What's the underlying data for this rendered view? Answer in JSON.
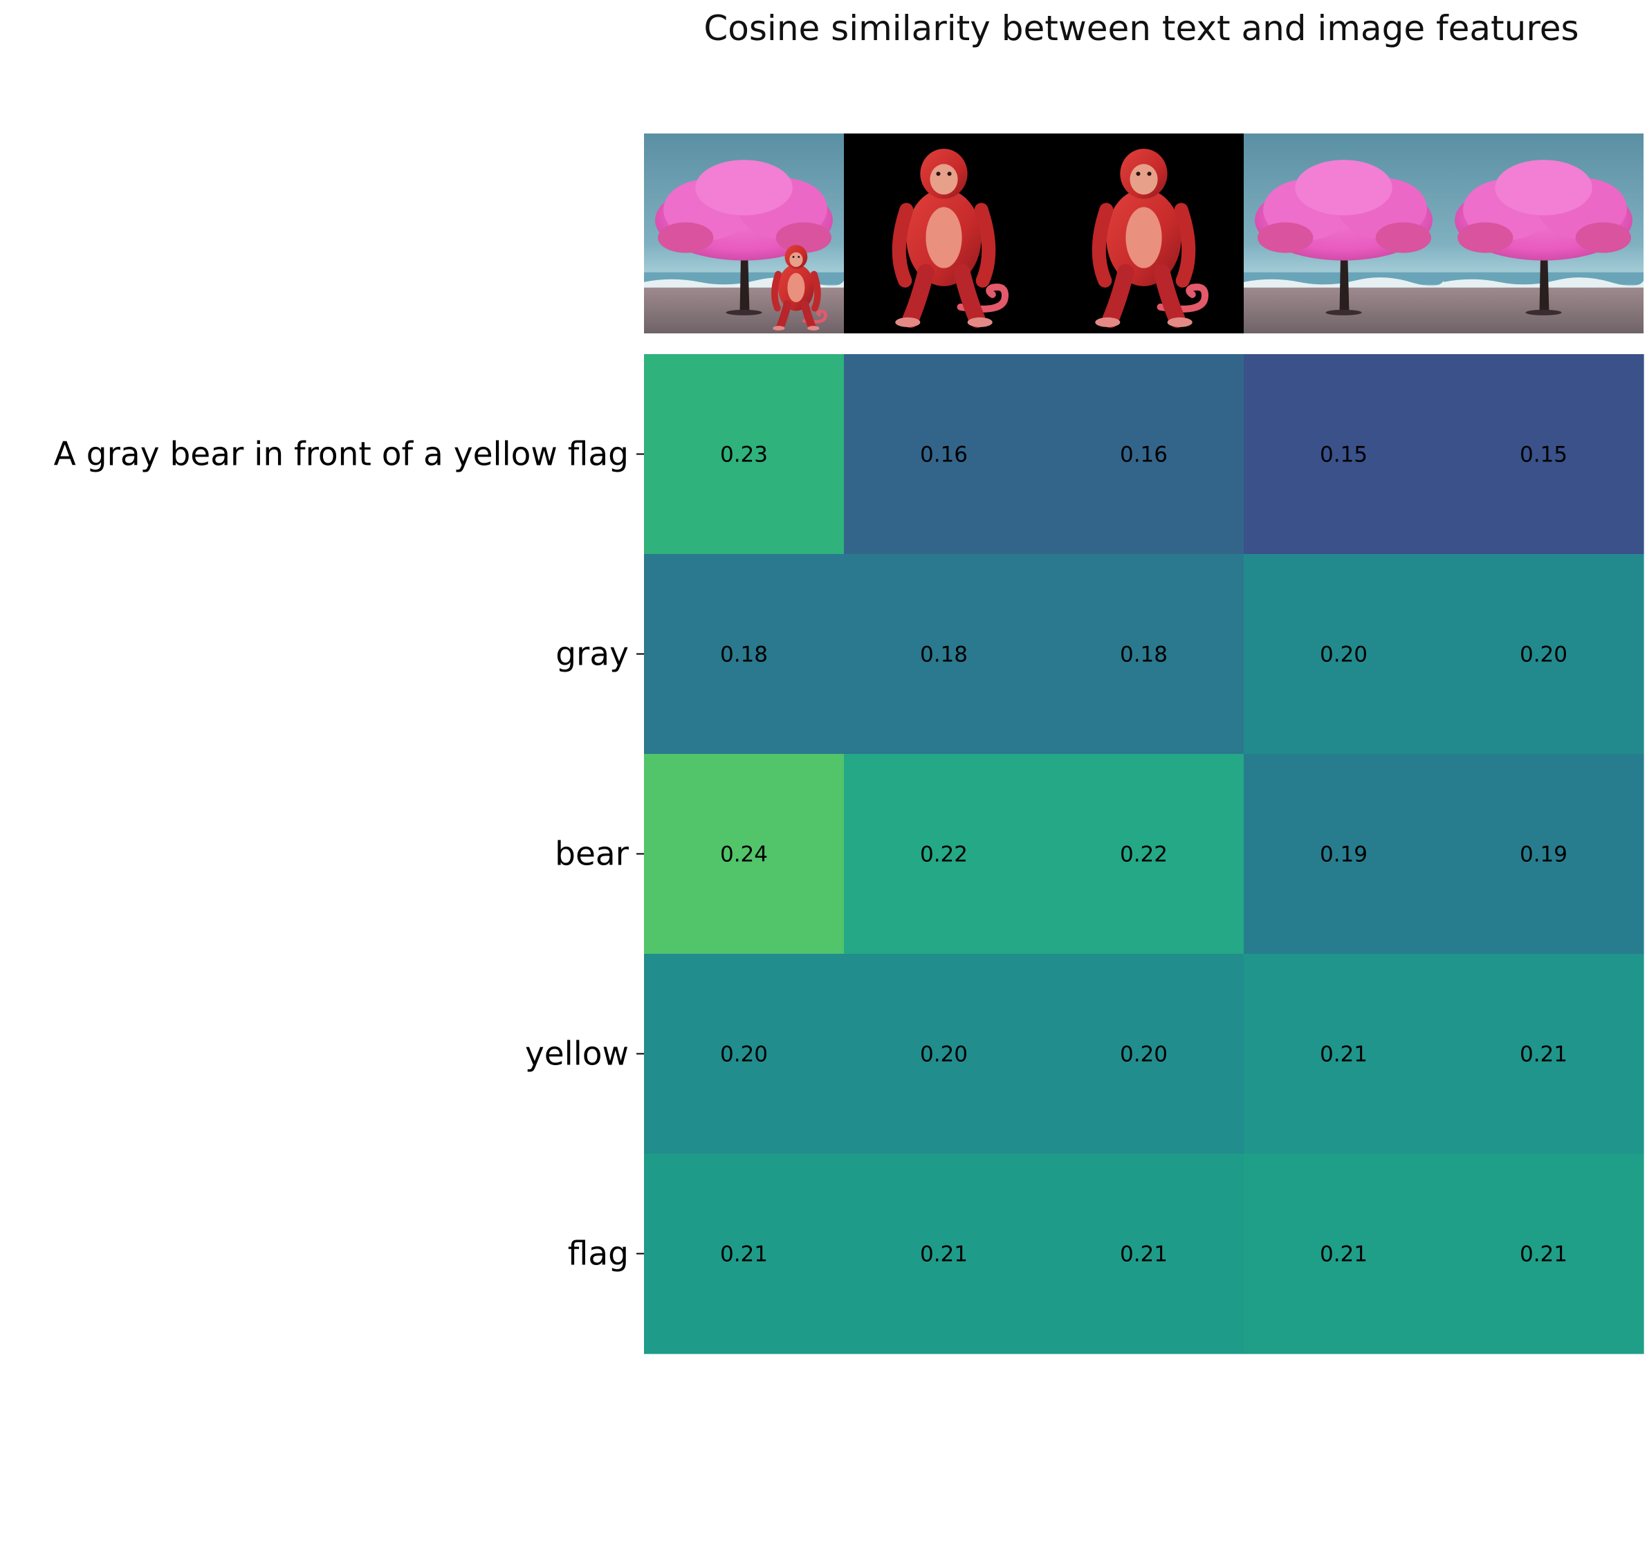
{
  "chart_data": {
    "type": "heatmap",
    "title": "Cosine similarity between text and image features",
    "xlabel": "",
    "ylabel": "",
    "rows": [
      "A gray bear in front of a yellow flag",
      "gray",
      "bear",
      "yellow",
      "flag"
    ],
    "columns": [
      {
        "image": "pink-tree-with-small-red-monkey"
      },
      {
        "image": "red-monkey-on-black"
      },
      {
        "image": "red-monkey-on-black"
      },
      {
        "image": "pink-tree-on-beach"
      },
      {
        "image": "pink-tree-on-beach"
      }
    ],
    "values": [
      [
        0.23,
        0.16,
        0.16,
        0.15,
        0.15
      ],
      [
        0.18,
        0.18,
        0.18,
        0.2,
        0.2
      ],
      [
        0.24,
        0.22,
        0.22,
        0.19,
        0.19
      ],
      [
        0.2,
        0.2,
        0.2,
        0.21,
        0.21
      ],
      [
        0.21,
        0.21,
        0.21,
        0.21,
        0.21
      ]
    ],
    "cell_colors": [
      [
        "#2fb27c",
        "#33658b",
        "#33658b",
        "#3a518a",
        "#3a518a"
      ],
      [
        "#2a798e",
        "#2a798e",
        "#2a798e",
        "#228a8d",
        "#228a8d"
      ],
      [
        "#52c46a",
        "#24a886",
        "#24a886",
        "#277d8e",
        "#277d8e"
      ],
      [
        "#228d8d",
        "#228d8d",
        "#228d8d",
        "#1f958b",
        "#1f958b"
      ],
      [
        "#1f9b89",
        "#1f9b89",
        "#1f9b89",
        "#1f9e88",
        "#1f9e88"
      ]
    ],
    "value_format": "0.00",
    "colormap": "viridis",
    "grid": false,
    "legend": "none"
  }
}
